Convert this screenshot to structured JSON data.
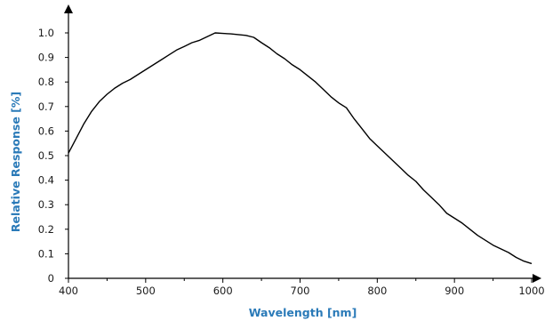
{
  "chart_data": {
    "type": "line",
    "title": "",
    "xlabel": "Wavelength [nm]",
    "ylabel": "Relative Response [%]",
    "xlim": [
      400,
      1000
    ],
    "ylim": [
      0,
      1.0
    ],
    "x_ticks": [
      "400",
      "500",
      "600",
      "700",
      "800",
      "900",
      "1000"
    ],
    "y_ticks": [
      "0",
      "0.1",
      "0.2",
      "0.3",
      "0.4",
      "0.5",
      "0.6",
      "0.7",
      "0.8",
      "0.9",
      "1.0"
    ],
    "grid": false,
    "legend": "none",
    "series": [
      {
        "color": "#000000",
        "x": [
          400,
          410,
          420,
          430,
          440,
          450,
          460,
          470,
          480,
          490,
          500,
          510,
          520,
          530,
          540,
          550,
          560,
          570,
          580,
          590,
          600,
          610,
          620,
          630,
          640,
          650,
          660,
          670,
          680,
          690,
          700,
          710,
          720,
          730,
          740,
          750,
          760,
          770,
          780,
          790,
          800,
          810,
          820,
          830,
          840,
          850,
          860,
          870,
          880,
          890,
          900,
          910,
          920,
          930,
          940,
          950,
          960,
          970,
          980,
          990,
          1000
        ],
        "y": [
          0.51,
          0.57,
          0.63,
          0.68,
          0.72,
          0.75,
          0.775,
          0.795,
          0.81,
          0.83,
          0.85,
          0.87,
          0.89,
          0.91,
          0.93,
          0.945,
          0.96,
          0.97,
          0.985,
          1.0,
          0.998,
          0.996,
          0.993,
          0.99,
          0.982,
          0.96,
          0.94,
          0.915,
          0.895,
          0.87,
          0.85,
          0.825,
          0.8,
          0.77,
          0.74,
          0.715,
          0.695,
          0.65,
          0.61,
          0.57,
          0.54,
          0.51,
          0.48,
          0.45,
          0.42,
          0.395,
          0.36,
          0.33,
          0.3,
          0.265,
          0.245,
          0.225,
          0.2,
          0.175,
          0.155,
          0.135,
          0.12,
          0.105,
          0.085,
          0.07,
          0.06
        ]
      }
    ]
  }
}
